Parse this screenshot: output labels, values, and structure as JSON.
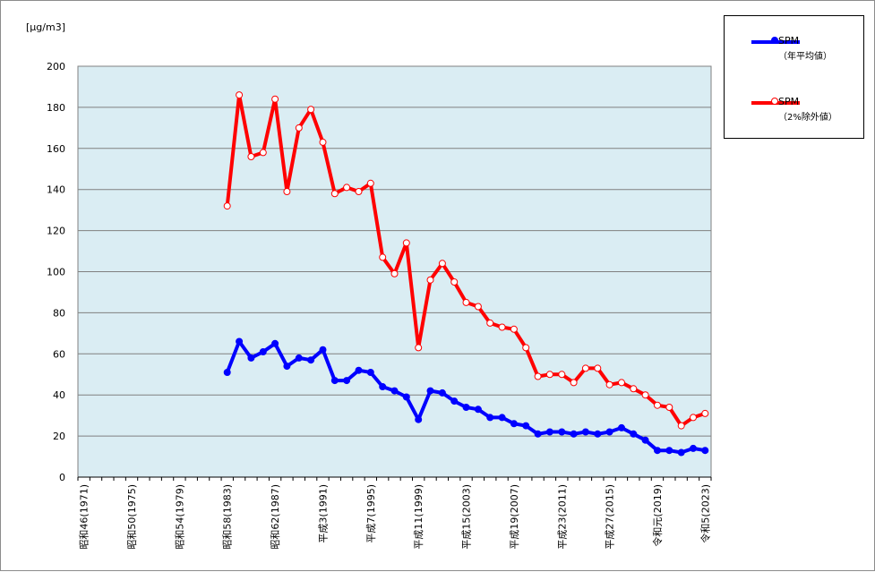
{
  "chart_data": {
    "type": "line",
    "y_unit": "[μg/m3]",
    "ylim": [
      0,
      200
    ],
    "ytick_step": 20,
    "grid": true,
    "plot_background": "#daedf3",
    "legend_position": "top-right",
    "x_tick_labels": [
      "昭和46(1971)",
      "昭和50(1975)",
      "昭和54(1979)",
      "昭和58(1983)",
      "昭和62(1987)",
      "平成3(1991)",
      "平成7(1995)",
      "平成11(1999)",
      "平成15(2003)",
      "平成19(2007)",
      "平成23(2011)",
      "平成27(2015)",
      "令和元(2019)",
      "令和5(2023)"
    ],
    "x": [
      1971,
      1972,
      1973,
      1974,
      1975,
      1976,
      1977,
      1978,
      1979,
      1980,
      1981,
      1982,
      1983,
      1984,
      1985,
      1986,
      1987,
      1988,
      1989,
      1990,
      1991,
      1992,
      1993,
      1994,
      1995,
      1996,
      1997,
      1998,
      1999,
      2000,
      2001,
      2002,
      2003,
      2004,
      2005,
      2006,
      2007,
      2008,
      2009,
      2010,
      2011,
      2012,
      2013,
      2014,
      2015,
      2016,
      2017,
      2018,
      2019,
      2020,
      2021,
      2022,
      2023
    ],
    "series": [
      {
        "name": "SPM",
        "name_sub": "（年平均値）",
        "color": "#0000ff",
        "marker": "filled",
        "values": [
          null,
          null,
          null,
          null,
          null,
          null,
          null,
          null,
          null,
          null,
          null,
          null,
          51,
          66,
          58,
          61,
          65,
          54,
          58,
          57,
          62,
          47,
          47,
          52,
          51,
          44,
          42,
          39,
          28,
          42,
          41,
          37,
          34,
          33,
          29,
          29,
          26,
          25,
          21,
          22,
          22,
          21,
          22,
          21,
          22,
          24,
          21,
          18,
          13,
          13,
          12,
          14,
          13
        ]
      },
      {
        "name": "SPM",
        "name_sub": "（2%除外値）",
        "color": "#ff0000",
        "marker": "hollow",
        "values": [
          null,
          null,
          null,
          null,
          null,
          null,
          null,
          null,
          null,
          null,
          null,
          null,
          132,
          186,
          156,
          158,
          184,
          139,
          170,
          179,
          163,
          138,
          141,
          139,
          143,
          107,
          99,
          114,
          63,
          96,
          104,
          95,
          85,
          83,
          75,
          73,
          72,
          63,
          49,
          50,
          50,
          46,
          53,
          53,
          45,
          46,
          43,
          40,
          35,
          34,
          25,
          29,
          31
        ]
      }
    ]
  }
}
